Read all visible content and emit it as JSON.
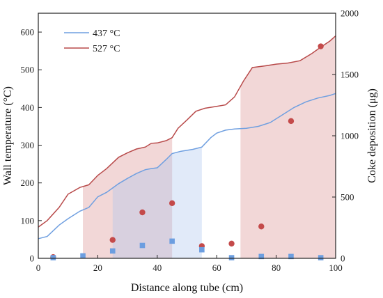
{
  "chart_data": {
    "type": "line",
    "xlabel": "Distance along tube (cm)",
    "ylabel_left": "Wall temperature (°C)",
    "ylabel_right": "Coke deposition (μg)",
    "xlim": [
      0,
      100
    ],
    "ylim_left": [
      0,
      650
    ],
    "ylim_right": [
      0,
      2000
    ],
    "x_ticks": [
      0,
      20,
      40,
      60,
      80,
      100
    ],
    "y_left_ticks": [
      0,
      100,
      200,
      300,
      400,
      500,
      600
    ],
    "y_right_ticks": [
      0,
      500,
      1000,
      1500,
      2000
    ],
    "legend_position": "top-left",
    "series": [
      {
        "name": "437 °C",
        "axis": "left",
        "color": "#6f9fe0",
        "x": [
          0,
          3,
          7,
          10,
          14,
          17,
          20,
          23,
          27,
          30,
          33,
          36,
          38,
          40,
          43,
          45,
          48,
          52,
          55,
          58,
          60,
          63,
          66,
          70,
          74,
          78,
          82,
          86,
          90,
          94,
          98,
          100
        ],
        "y": [
          52,
          58,
          88,
          105,
          125,
          135,
          163,
          175,
          198,
          212,
          225,
          235,
          238,
          240,
          262,
          278,
          284,
          289,
          295,
          320,
          332,
          340,
          343,
          345,
          350,
          360,
          380,
          400,
          415,
          425,
          432,
          437
        ]
      },
      {
        "name": "527 °C",
        "axis": "left",
        "color": "#b84a4a",
        "x": [
          0,
          3,
          7,
          10,
          14,
          17,
          20,
          23,
          27,
          30,
          33,
          36,
          38,
          40,
          43,
          45,
          47,
          50,
          53,
          56,
          60,
          63,
          66,
          69,
          72,
          76,
          80,
          84,
          88,
          92,
          95,
          98,
          100
        ],
        "y": [
          83,
          100,
          135,
          170,
          188,
          195,
          220,
          238,
          268,
          280,
          290,
          295,
          305,
          306,
          312,
          320,
          345,
          367,
          390,
          398,
          403,
          407,
          428,
          470,
          506,
          510,
          515,
          518,
          524,
          543,
          560,
          576,
          590
        ]
      },
      {
        "name": "",
        "axis": "right",
        "kind": "scatter",
        "color": "#c44a4a",
        "x": [
          5,
          25,
          35,
          45,
          55,
          65,
          75,
          85,
          95
        ],
        "y": [
          10,
          150,
          375,
          450,
          100,
          120,
          260,
          1120,
          1730
        ]
      },
      {
        "name": "",
        "axis": "right",
        "kind": "scatter",
        "color": "#6c9ee0",
        "x": [
          5,
          15,
          25,
          35,
          45,
          55,
          65,
          75,
          85,
          95
        ],
        "y": [
          5,
          20,
          60,
          105,
          140,
          70,
          5,
          15,
          15,
          5
        ]
      }
    ],
    "shaded_regions": [
      {
        "from": 15,
        "to": 45,
        "follows": "527 °C",
        "color": "#d98c8c"
      },
      {
        "from": 25,
        "to": 55,
        "follows": "437 °C",
        "color": "#a9c3ee"
      },
      {
        "from": 68,
        "to": 100,
        "follows": "527 °C",
        "color": "#d98c8c"
      }
    ]
  }
}
